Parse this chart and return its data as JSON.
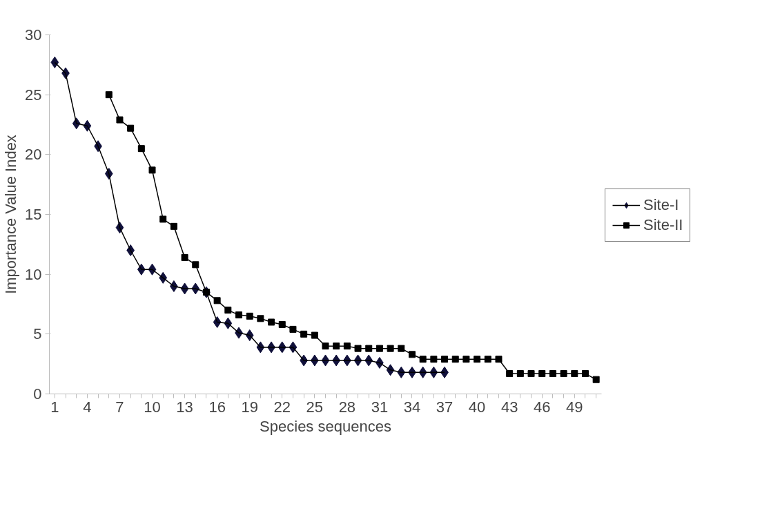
{
  "chart_data": {
    "type": "line",
    "xlabel": "Species sequences",
    "ylabel": "Importance Value Index",
    "categories": [
      "1",
      null,
      null,
      "4",
      null,
      null,
      "7",
      null,
      null,
      "10",
      null,
      null,
      "13",
      null,
      null,
      "16",
      null,
      null,
      "19",
      null,
      null,
      "22",
      null,
      null,
      "25",
      null,
      null,
      "28",
      null,
      null,
      "31",
      null,
      null,
      "34",
      null,
      null,
      "37",
      null,
      null,
      "40",
      null,
      null,
      "43",
      null,
      null,
      "46",
      null,
      null,
      "49",
      null,
      null
    ],
    "series": [
      {
        "name": "Site-I",
        "color": "#10103a",
        "marker": "diamond",
        "values": [
          27.7,
          26.8,
          22.6,
          22.4,
          20.7,
          18.4,
          13.9,
          12.0,
          10.4,
          10.4,
          9.7,
          9.0,
          8.8,
          8.8,
          8.5,
          6.0,
          5.9,
          5.1,
          4.9,
          3.9,
          3.9,
          3.9,
          3.9,
          2.8,
          2.8,
          2.8,
          2.8,
          2.8,
          2.8,
          2.8,
          2.6,
          2.0,
          1.8,
          1.8,
          1.8,
          1.8,
          1.8,
          null,
          null,
          null,
          null,
          null,
          null,
          null,
          null,
          null,
          null,
          null,
          null,
          null,
          null
        ]
      },
      {
        "name": "Site-II",
        "color": "#000000",
        "marker": "square",
        "values": [
          null,
          null,
          null,
          null,
          null,
          25.0,
          22.9,
          22.2,
          20.5,
          18.7,
          14.6,
          14.0,
          11.4,
          10.8,
          8.5,
          7.8,
          7.0,
          6.6,
          6.5,
          6.3,
          6.0,
          5.8,
          5.4,
          5.0,
          4.9,
          4.0,
          4.0,
          4.0,
          3.8,
          3.8,
          3.8,
          3.8,
          3.8,
          3.3,
          2.9,
          2.9,
          2.9,
          2.9,
          2.9,
          2.9,
          2.9,
          2.9,
          1.7,
          1.7,
          1.7,
          1.7,
          1.7,
          1.7,
          1.7,
          1.7,
          1.2
        ]
      }
    ],
    "ylim": [
      0,
      30
    ],
    "yticks": [
      0,
      5,
      10,
      15,
      20,
      25,
      30
    ],
    "grid": false,
    "legend": "right"
  }
}
